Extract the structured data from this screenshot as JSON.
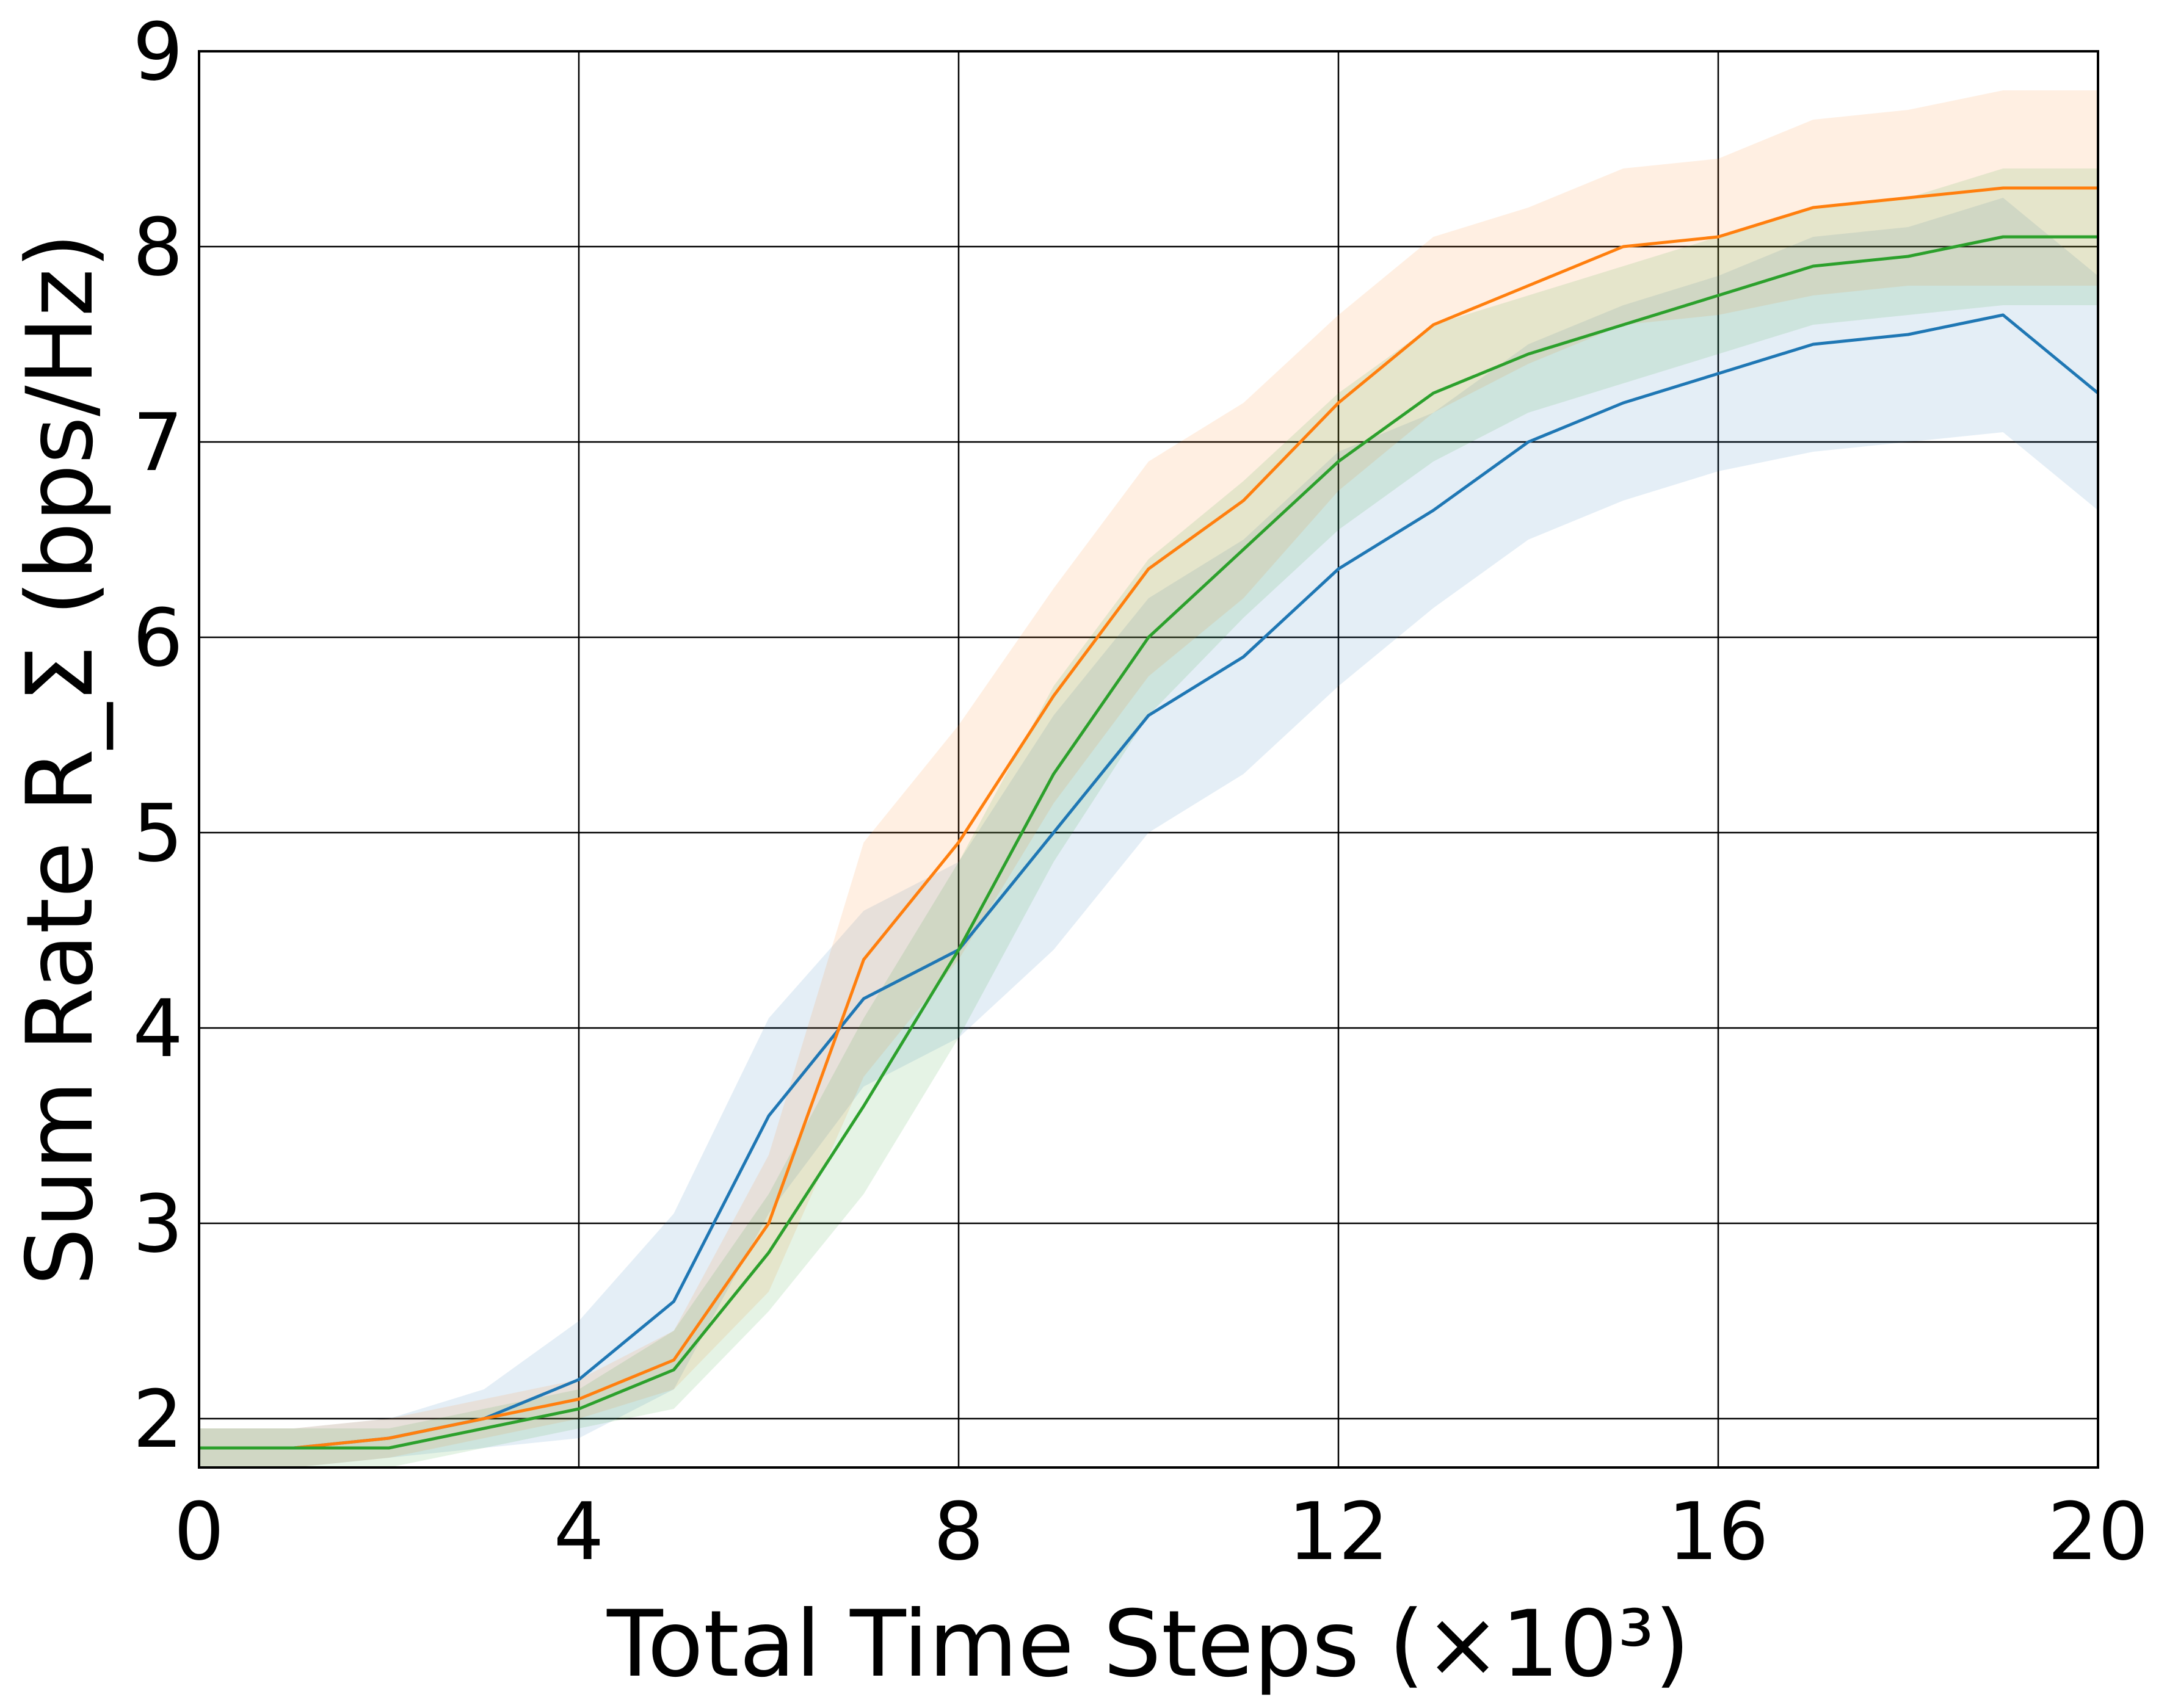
{
  "chart_data": {
    "type": "line",
    "title": "",
    "xlabel": "Total Time Steps (×10³)",
    "ylabel": "Sum Rate R_Σ (bps/Hz)",
    "xlim": [
      0,
      20
    ],
    "ylim": [
      1.75,
      9
    ],
    "xticks": [
      0,
      4,
      8,
      12,
      16,
      20
    ],
    "yticks": [
      2,
      3,
      4,
      5,
      6,
      7,
      8,
      9
    ],
    "grid": true,
    "legend": "none",
    "shaded_bands": true,
    "series": [
      {
        "color": "#1f77b4",
        "band_alpha": 0.12,
        "band_halfwidth": [
          0.1,
          0.1,
          0.1,
          0.15,
          0.3,
          0.45,
          0.5,
          0.45,
          0.45,
          0.6,
          0.6,
          0.6,
          0.6,
          0.5,
          0.5,
          0.5,
          0.5,
          0.55,
          0.55,
          0.6,
          0.6
        ],
        "x": [
          0,
          1,
          2,
          3,
          4,
          5,
          6,
          7,
          8,
          9,
          10,
          11,
          12,
          13,
          14,
          15,
          16,
          17,
          18,
          19,
          20
        ],
        "y": [
          1.85,
          1.85,
          1.9,
          2.0,
          2.2,
          2.6,
          3.55,
          4.15,
          4.4,
          5.0,
          5.6,
          5.9,
          6.35,
          6.65,
          7.0,
          7.2,
          7.35,
          7.5,
          7.55,
          7.65,
          7.25
        ]
      },
      {
        "color": "#ff7f0e",
        "band_alpha": 0.12,
        "band_halfwidth": [
          0.1,
          0.1,
          0.1,
          0.1,
          0.1,
          0.15,
          0.35,
          0.6,
          0.6,
          0.55,
          0.55,
          0.5,
          0.45,
          0.45,
          0.4,
          0.4,
          0.4,
          0.45,
          0.45,
          0.5,
          0.5
        ],
        "x": [
          0,
          1,
          2,
          3,
          4,
          5,
          6,
          7,
          8,
          9,
          10,
          11,
          12,
          13,
          14,
          15,
          16,
          17,
          18,
          19,
          20
        ],
        "y": [
          1.85,
          1.85,
          1.9,
          2.0,
          2.1,
          2.3,
          3.0,
          4.35,
          4.95,
          5.7,
          6.35,
          6.7,
          7.2,
          7.6,
          7.8,
          8.0,
          8.05,
          8.2,
          8.25,
          8.3,
          8.3
        ]
      },
      {
        "color": "#2ca02c",
        "band_alpha": 0.12,
        "band_halfwidth": [
          0.1,
          0.1,
          0.1,
          0.1,
          0.1,
          0.2,
          0.3,
          0.45,
          0.45,
          0.45,
          0.4,
          0.35,
          0.35,
          0.35,
          0.3,
          0.3,
          0.3,
          0.3,
          0.3,
          0.35,
          0.35
        ],
        "x": [
          0,
          1,
          2,
          3,
          4,
          5,
          6,
          7,
          8,
          9,
          10,
          11,
          12,
          13,
          14,
          15,
          16,
          17,
          18,
          19,
          20
        ],
        "y": [
          1.85,
          1.85,
          1.85,
          1.95,
          2.05,
          2.25,
          2.85,
          3.6,
          4.4,
          5.3,
          6.0,
          6.45,
          6.9,
          7.25,
          7.45,
          7.6,
          7.75,
          7.9,
          7.95,
          8.05,
          8.05
        ]
      }
    ]
  }
}
